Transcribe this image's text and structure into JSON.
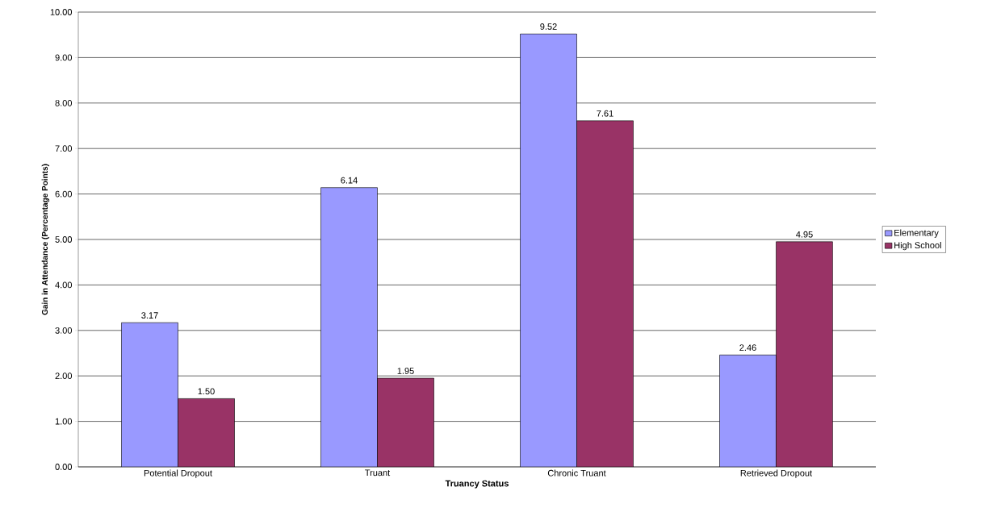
{
  "chart_data": {
    "type": "bar",
    "xlabel": "Truancy Status",
    "ylabel": "Gain in Attendance (Percentage Points)",
    "categories": [
      "Potential Dropout",
      "Truant",
      "Chronic Truant",
      "Retrieved Dropout"
    ],
    "series": [
      {
        "name": "Elementary",
        "color": "#9999ff",
        "values": [
          3.17,
          6.14,
          9.52,
          2.46
        ],
        "value_labels": [
          "3.17",
          "6.14",
          "9.52",
          "2.46"
        ]
      },
      {
        "name": "High School",
        "color": "#993366",
        "values": [
          1.5,
          1.95,
          7.61,
          4.95
        ],
        "value_labels": [
          "1.50",
          "1.95",
          "7.61",
          "4.95"
        ]
      }
    ],
    "ylim": [
      0,
      10
    ],
    "yticks": [
      {
        "value": 0,
        "label": "0.00"
      },
      {
        "value": 1,
        "label": "1.00"
      },
      {
        "value": 2,
        "label": "2.00"
      },
      {
        "value": 3,
        "label": "3.00"
      },
      {
        "value": 4,
        "label": "4.00"
      },
      {
        "value": 5,
        "label": "5.00"
      },
      {
        "value": 6,
        "label": "6.00"
      },
      {
        "value": 7,
        "label": "7.00"
      },
      {
        "value": 8,
        "label": "8.00"
      },
      {
        "value": 9,
        "label": "9.00"
      },
      {
        "value": 10,
        "label": "10.00"
      }
    ],
    "grid": "y",
    "legend": "right"
  }
}
